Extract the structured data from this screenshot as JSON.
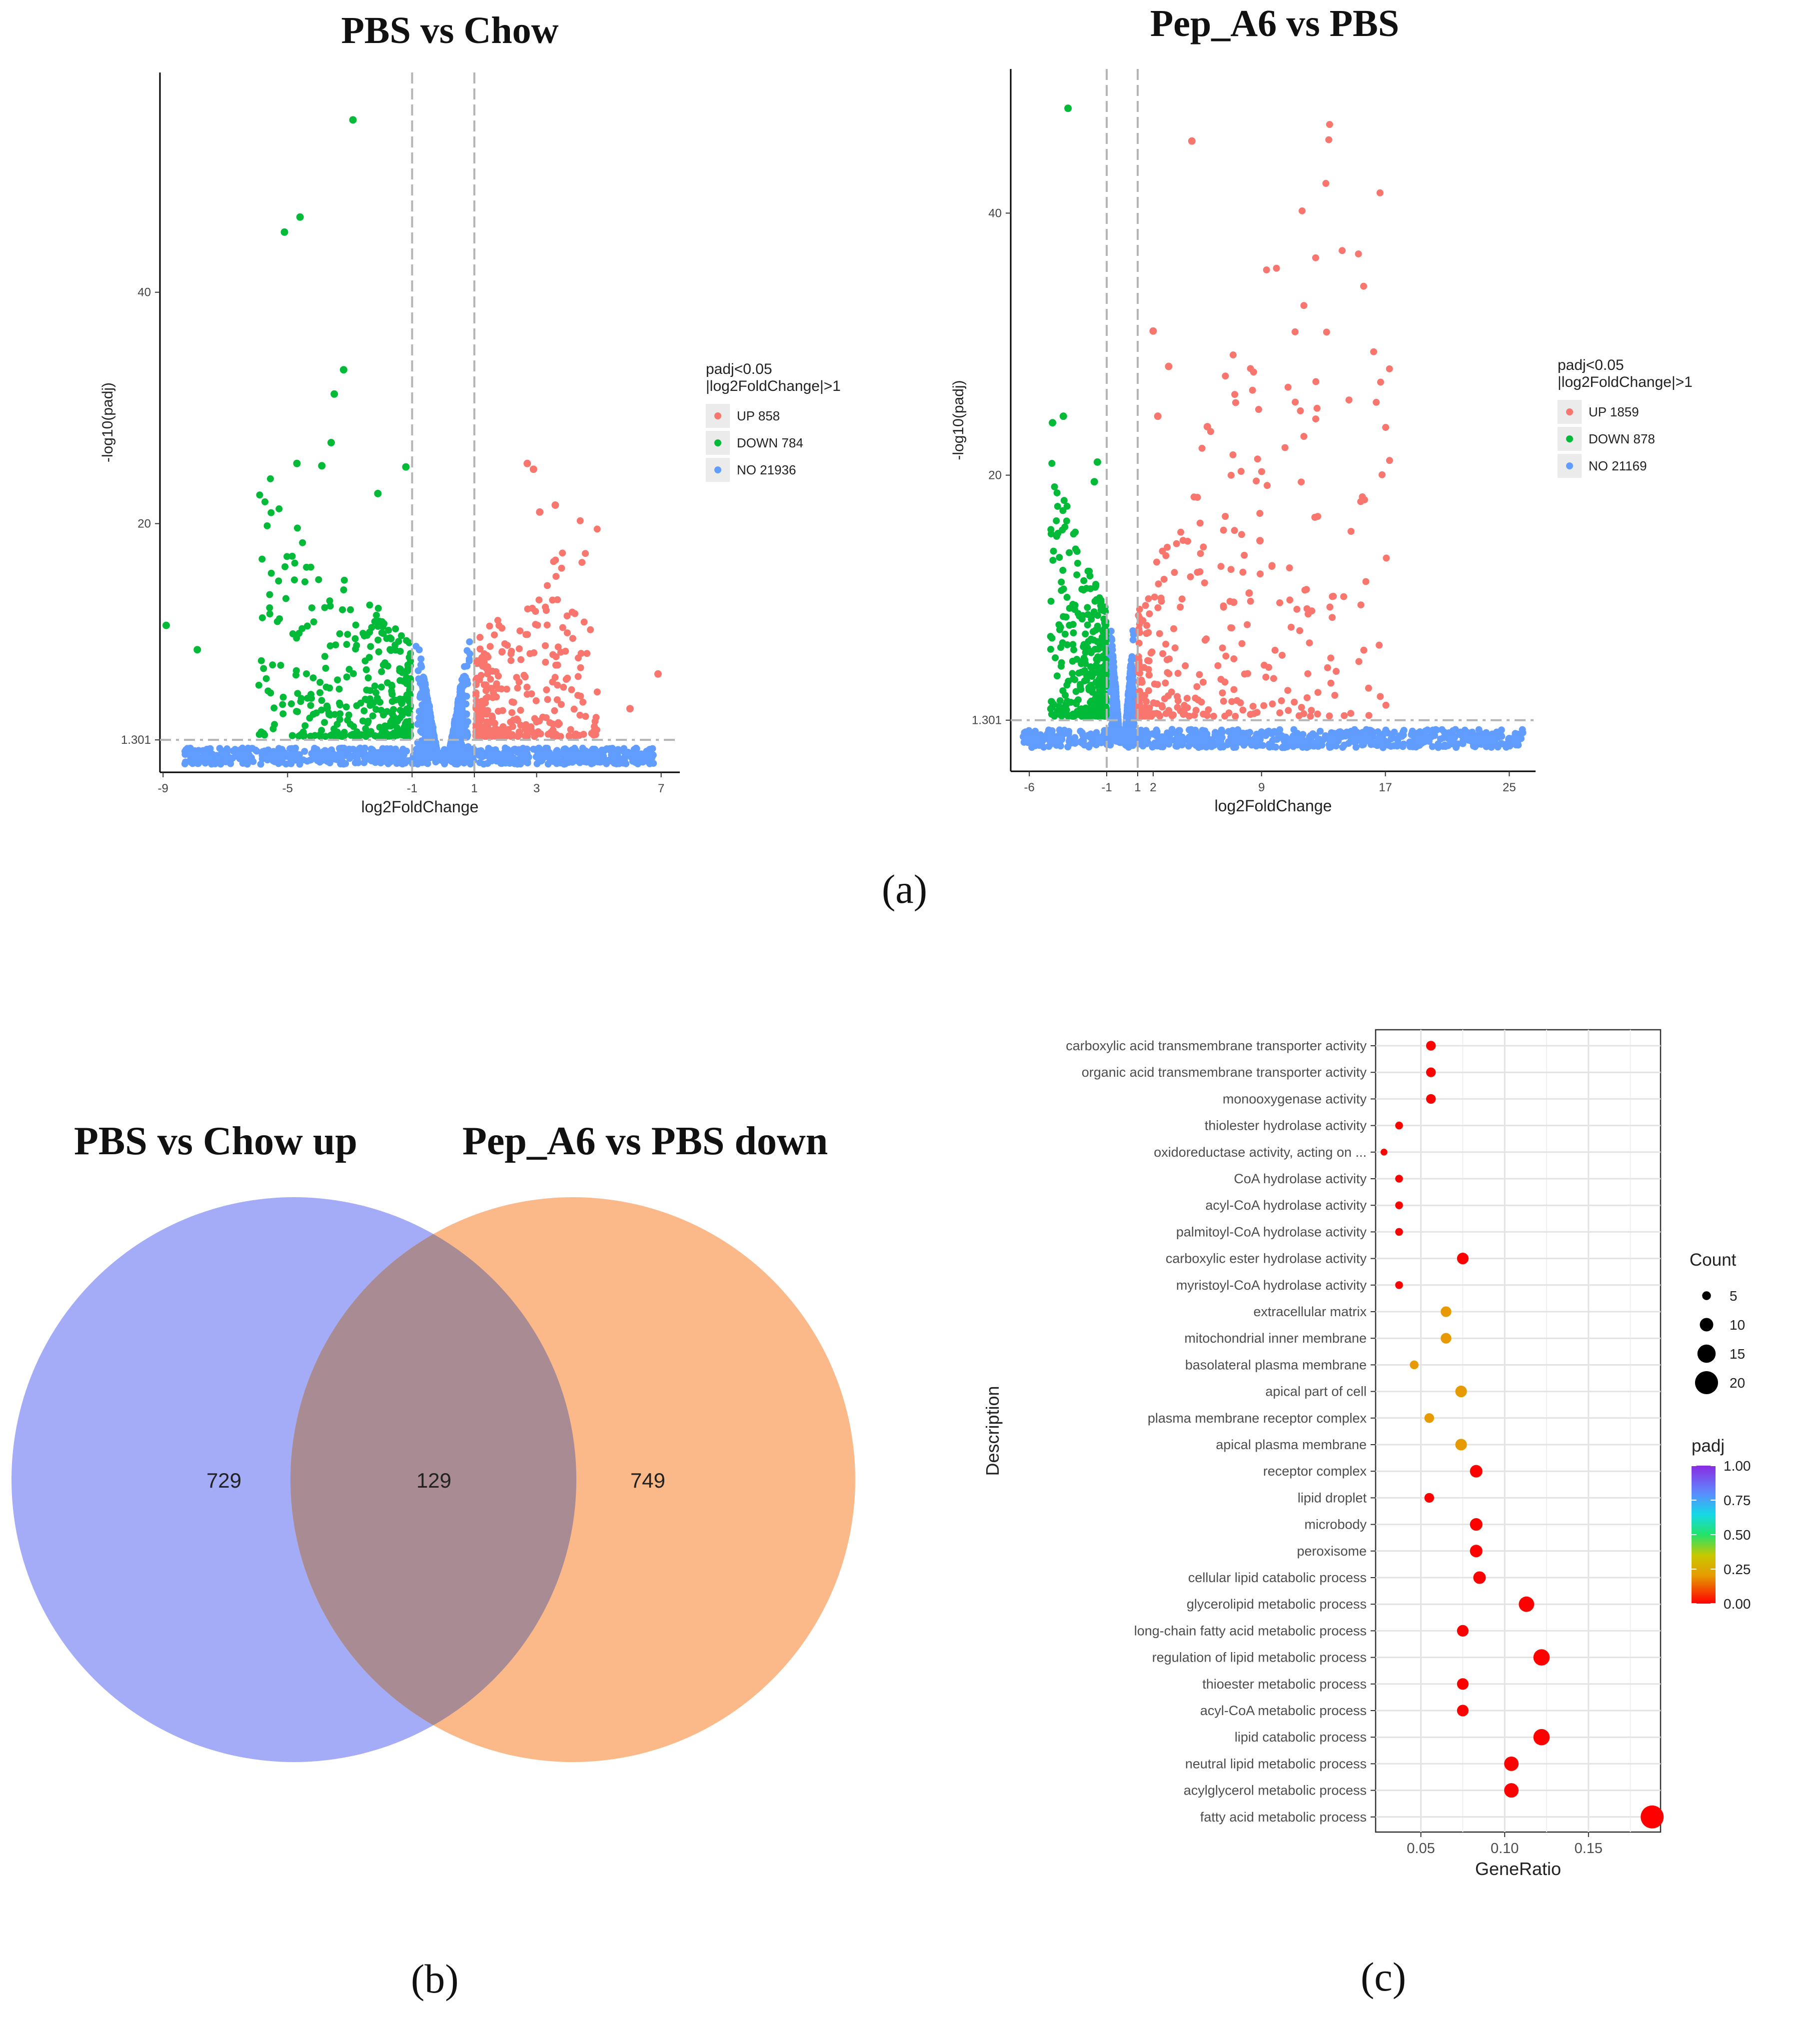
{
  "panels": {
    "a_label": "(a)",
    "b_label": "(b)",
    "c_label": "(c)"
  },
  "chart_data": [
    {
      "type": "scatter",
      "title": "PBS vs Chow",
      "xlabel": "log2FoldChange",
      "ylabel": "-log10(padj)",
      "x_ticks": [
        "-9",
        "-5",
        "-1",
        "1",
        "3",
        "7"
      ],
      "y_ticks": [
        "1.301",
        "20",
        "40"
      ],
      "xlim": [
        -9.1,
        7.6
      ],
      "ylim": [
        -1.5,
        59
      ],
      "thresholds": {
        "log2fc": [
          -1,
          1
        ],
        "padj_log10": 1.301
      },
      "legend_title": [
        "padj<0.05",
        "|log2FoldChange|>1"
      ],
      "legend_position": "right",
      "series": [
        {
          "name": "UP 858",
          "color": "#F8766D"
        },
        {
          "name": "DOWN 784",
          "color": "#00BA38"
        },
        {
          "name": "NO 21936",
          "color": "#619CFF"
        }
      ],
      "highlight_points": [
        {
          "group": "DOWN",
          "x": -2.9,
          "y": 54.9
        },
        {
          "group": "DOWN",
          "x": -4.6,
          "y": 46.5
        },
        {
          "group": "DOWN",
          "x": -5.1,
          "y": 45.2
        },
        {
          "group": "DOWN",
          "x": -3.2,
          "y": 33.3
        },
        {
          "group": "DOWN",
          "x": -3.5,
          "y": 31.2
        },
        {
          "group": "DOWN",
          "x": -3.6,
          "y": 27.0
        },
        {
          "group": "DOWN",
          "x": -4.7,
          "y": 25.2
        },
        {
          "group": "DOWN",
          "x": -3.9,
          "y": 25.0
        },
        {
          "group": "DOWN",
          "x": -1.2,
          "y": 24.9
        },
        {
          "group": "DOWN",
          "x": -2.1,
          "y": 22.6
        },
        {
          "group": "DOWN",
          "x": -8.9,
          "y": 11.2
        },
        {
          "group": "DOWN",
          "x": -7.9,
          "y": 9.1
        },
        {
          "group": "UP",
          "x": 2.7,
          "y": 25.2
        },
        {
          "group": "UP",
          "x": 2.9,
          "y": 24.7
        },
        {
          "group": "UP",
          "x": 3.6,
          "y": 21.6
        },
        {
          "group": "UP",
          "x": 3.1,
          "y": 21.0
        },
        {
          "group": "UP",
          "x": 6.9,
          "y": 7.0
        },
        {
          "group": "UP",
          "x": 6.0,
          "y": 4.0
        }
      ]
    },
    {
      "type": "scatter",
      "title": "Pep_A6 vs PBS",
      "xlabel": "log2FoldChange",
      "ylabel": "-log10(padj)",
      "x_ticks": [
        "-6",
        "-1",
        "1",
        "2",
        "9",
        "17",
        "25"
      ],
      "y_ticks": [
        "1.301",
        "20",
        "40"
      ],
      "xlim": [
        -7.2,
        26.7
      ],
      "ylim": [
        -2.6,
        51
      ],
      "thresholds": {
        "log2fc": [
          -1,
          1
        ],
        "padj_log10": 1.301
      },
      "legend_title": [
        "padj<0.05",
        "|log2FoldChange|>1"
      ],
      "legend_position": "right",
      "series": [
        {
          "name": "UP 1859",
          "color": "#F8766D"
        },
        {
          "name": "DOWN 878",
          "color": "#00BA38"
        },
        {
          "name": "NO 21169",
          "color": "#619CFF"
        }
      ],
      "highlight_points": [
        {
          "group": "DOWN",
          "x": -3.5,
          "y": 48.0
        },
        {
          "group": "DOWN",
          "x": -4.5,
          "y": 24.0
        },
        {
          "group": "DOWN",
          "x": -3.8,
          "y": 24.5
        },
        {
          "group": "DOWN",
          "x": -1.6,
          "y": 21.0
        },
        {
          "group": "DOWN",
          "x": -1.8,
          "y": 19.5
        },
        {
          "group": "UP",
          "x": 4.5,
          "y": 45.5
        },
        {
          "group": "UP",
          "x": 2.0,
          "y": 31.0
        },
        {
          "group": "UP",
          "x": 3.0,
          "y": 28.3
        },
        {
          "group": "UP",
          "x": 2.3,
          "y": 24.5
        },
        {
          "group": "UP",
          "x": 5.5,
          "y": 23.7
        },
        {
          "group": "UP",
          "x": 8.9,
          "y": 15.0
        },
        {
          "group": "UP",
          "x": 8.2,
          "y": 11.0
        },
        {
          "group": "UP",
          "x": 7.2,
          "y": 10.3
        },
        {
          "group": "NO",
          "x": 25.0,
          "y": -0.1
        }
      ]
    },
    {
      "type": "venn",
      "sets": [
        {
          "name": "PBS vs Chow up",
          "only": 729,
          "color": "#A4ABF7"
        },
        {
          "name": "Pep_A6 vs PBS down",
          "only": 749,
          "color": "#FBB98A"
        }
      ],
      "intersection": 129,
      "intersection_color": "#A98B94"
    },
    {
      "type": "scatter",
      "subtype": "dotplot",
      "xlabel": "GeneRatio",
      "ylabel": "Description",
      "x_ticks": [
        "0.05",
        "0.10",
        "0.15"
      ],
      "xlim": [
        0.023,
        0.193
      ],
      "size_legend": {
        "title": "Count",
        "values": [
          5,
          10,
          15,
          20
        ]
      },
      "color_legend": {
        "title": "padj",
        "ticks": [
          "1.00",
          "0.75",
          "0.50",
          "0.25",
          "0.00"
        ]
      },
      "terms": [
        {
          "description": "carboxylic acid transmembrane transporter activity",
          "gene_ratio": 0.056,
          "count": 6,
          "padj": 0.0
        },
        {
          "description": "organic acid transmembrane transporter activity",
          "gene_ratio": 0.056,
          "count": 6,
          "padj": 0.0
        },
        {
          "description": "monooxygenase activity",
          "gene_ratio": 0.056,
          "count": 6,
          "padj": 0.0
        },
        {
          "description": "thiolester hydrolase activity",
          "gene_ratio": 0.037,
          "count": 4,
          "padj": 0.0
        },
        {
          "description": "oxidoreductase activity, acting on ...",
          "gene_ratio": 0.028,
          "count": 3,
          "padj": 0.0
        },
        {
          "description": "CoA hydrolase activity",
          "gene_ratio": 0.037,
          "count": 4,
          "padj": 0.0
        },
        {
          "description": "acyl-CoA hydrolase activity",
          "gene_ratio": 0.037,
          "count": 4,
          "padj": 0.0
        },
        {
          "description": "palmitoyl-CoA hydrolase activity",
          "gene_ratio": 0.037,
          "count": 4,
          "padj": 0.0
        },
        {
          "description": "carboxylic ester hydrolase activity",
          "gene_ratio": 0.075,
          "count": 8,
          "padj": 0.01
        },
        {
          "description": "myristoyl-CoA hydrolase activity",
          "gene_ratio": 0.037,
          "count": 4,
          "padj": 0.0
        },
        {
          "description": "extracellular matrix",
          "gene_ratio": 0.065,
          "count": 7,
          "padj": 0.2
        },
        {
          "description": "mitochondrial inner membrane",
          "gene_ratio": 0.065,
          "count": 7,
          "padj": 0.2
        },
        {
          "description": "basolateral plasma membrane",
          "gene_ratio": 0.046,
          "count": 5,
          "padj": 0.2
        },
        {
          "description": "apical part of cell",
          "gene_ratio": 0.074,
          "count": 8,
          "padj": 0.05
        },
        {
          "description": "plasma membrane receptor complex",
          "gene_ratio": 0.055,
          "count": 6,
          "padj": 0.03
        },
        {
          "description": "apical plasma membrane",
          "gene_ratio": 0.074,
          "count": 8,
          "padj": 0.02
        },
        {
          "description": "receptor complex",
          "gene_ratio": 0.083,
          "count": 9,
          "padj": 0.01
        },
        {
          "description": "lipid droplet",
          "gene_ratio": 0.055,
          "count": 6,
          "padj": 0.0
        },
        {
          "description": "microbody",
          "gene_ratio": 0.083,
          "count": 9,
          "padj": 0.0
        },
        {
          "description": "peroxisome",
          "gene_ratio": 0.083,
          "count": 9,
          "padj": 0.0
        },
        {
          "description": "cellular lipid catabolic process",
          "gene_ratio": 0.085,
          "count": 9,
          "padj": 0.0
        },
        {
          "description": "glycerolipid metabolic process",
          "gene_ratio": 0.113,
          "count": 12,
          "padj": 0.0
        },
        {
          "description": "long-chain fatty acid metabolic process",
          "gene_ratio": 0.075,
          "count": 8,
          "padj": 0.0
        },
        {
          "description": "regulation of lipid metabolic process",
          "gene_ratio": 0.122,
          "count": 13,
          "padj": 0.0
        },
        {
          "description": "thioester metabolic process",
          "gene_ratio": 0.075,
          "count": 8,
          "padj": 0.0
        },
        {
          "description": "acyl-CoA metabolic process",
          "gene_ratio": 0.075,
          "count": 8,
          "padj": 0.0
        },
        {
          "description": "lipid catabolic process",
          "gene_ratio": 0.122,
          "count": 13,
          "padj": 0.0
        },
        {
          "description": "neutral lipid metabolic process",
          "gene_ratio": 0.104,
          "count": 11,
          "padj": 0.0
        },
        {
          "description": "acylglycerol metabolic process",
          "gene_ratio": 0.104,
          "count": 11,
          "padj": 0.0
        },
        {
          "description": "fatty acid metabolic process",
          "gene_ratio": 0.188,
          "count": 20,
          "padj": 0.0
        }
      ]
    }
  ]
}
